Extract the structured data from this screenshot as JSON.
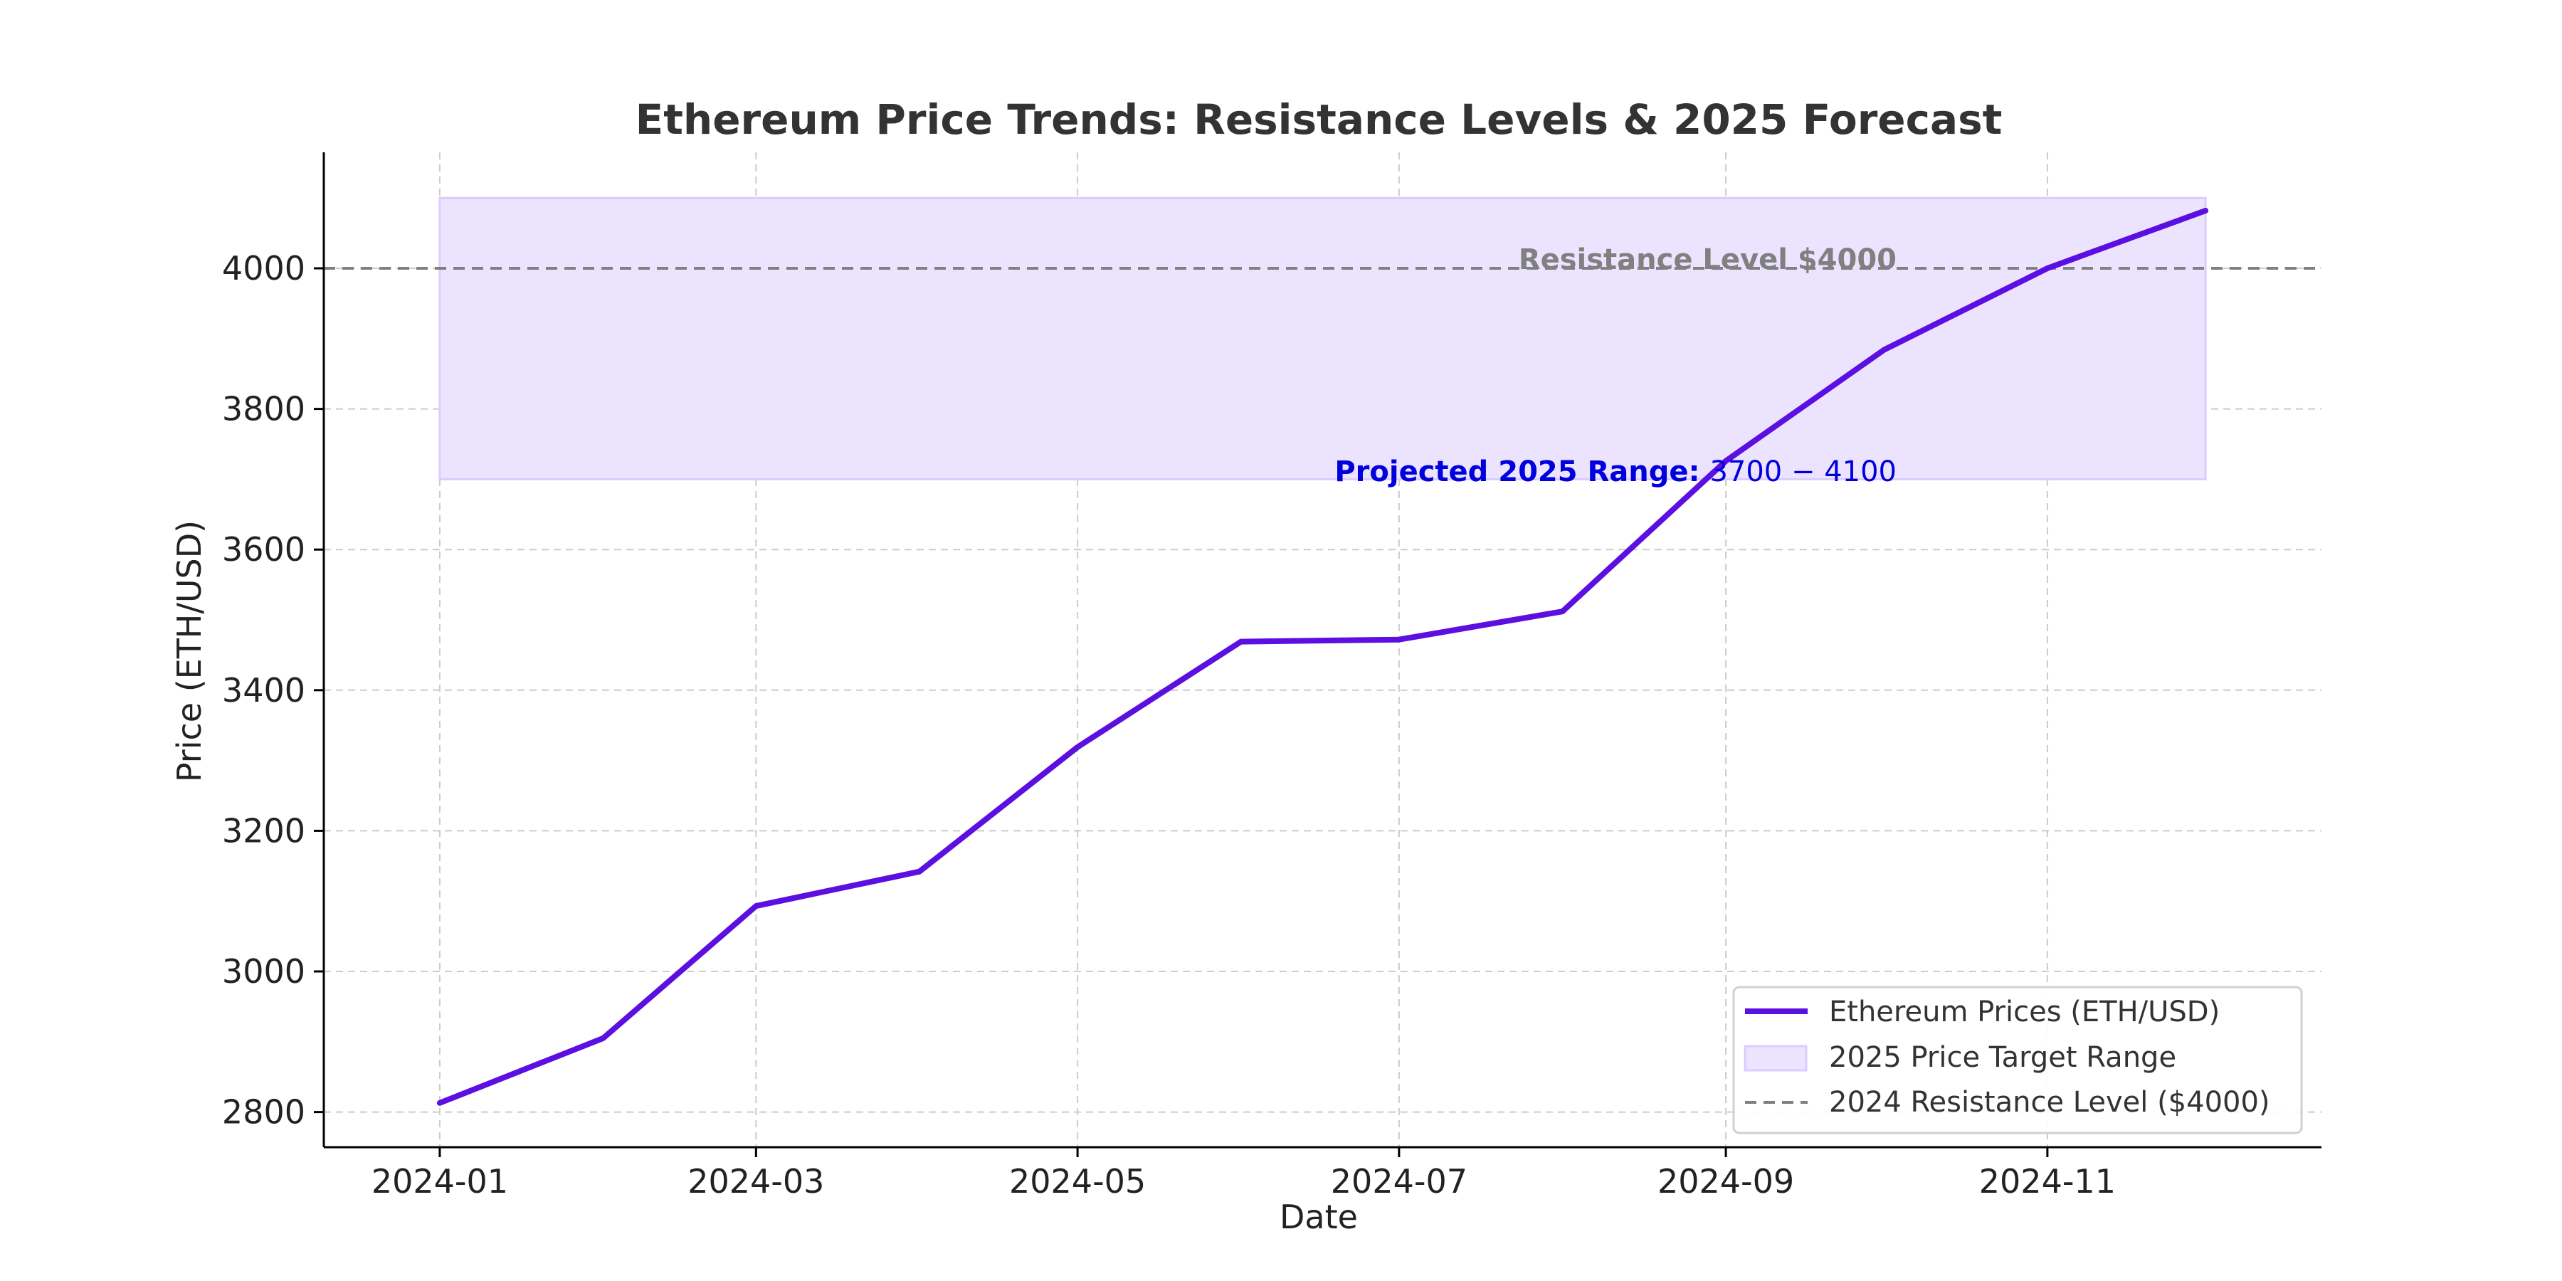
{
  "colors": {
    "line": "#5b0fe0",
    "band_fill": "#ece4ff",
    "band_stroke": "#d9ccff",
    "resistance": "#808080",
    "projection_text": "#0000dd",
    "grid": "#cccccc",
    "axis": "#000000"
  },
  "chart_data": {
    "type": "line",
    "title": "Ethereum Price Trends: Resistance Levels & 2025 Forecast",
    "xlabel": "Date",
    "ylabel": "Price (ETH/USD)",
    "x": [
      "2024-01",
      "2024-02",
      "2024-03",
      "2024-04",
      "2024-05",
      "2024-06",
      "2024-07",
      "2024-08",
      "2024-09",
      "2024-10",
      "2024-11",
      "2024-12"
    ],
    "x_ticks": [
      "2024-01",
      "2024-03",
      "2024-05",
      "2024-07",
      "2024-09",
      "2024-11"
    ],
    "xlim": [
      "2023-12-10",
      "2024-12-23"
    ],
    "ylim": [
      2750,
      4165
    ],
    "y_ticks": [
      2800,
      3000,
      3200,
      3400,
      3600,
      3800,
      4000
    ],
    "grid": true,
    "legend_position": "lower-right",
    "series": [
      {
        "name": "Ethereum Prices (ETH/USD)",
        "values": [
          2813,
          2905,
          3093,
          3142,
          3319,
          3469,
          3472,
          3512,
          3726,
          3884,
          4000,
          4082
        ]
      }
    ],
    "band": {
      "name": "2025 Price Target Range",
      "y_min": 3700,
      "y_max": 4100,
      "x_start": "2024-01",
      "x_end": "2024-12"
    },
    "reference_line": {
      "name": "2024 Resistance Level ($4000)",
      "y": 4000
    },
    "annotations": {
      "resistance": "Resistance Level $4000",
      "projection_bold": "Projected 2025 Range: ",
      "projection_math": "3700 − 4100"
    }
  }
}
